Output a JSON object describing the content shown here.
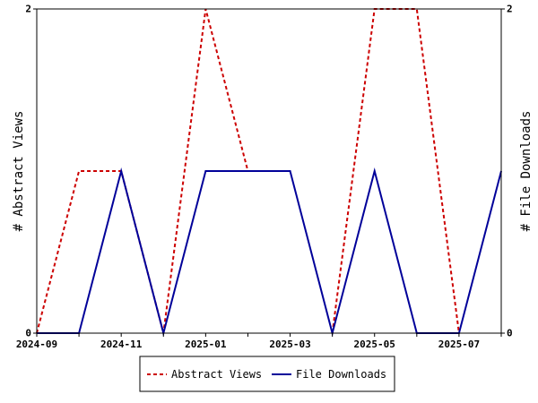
{
  "chart_data": {
    "type": "line",
    "x": [
      "2024-09",
      "2024-10",
      "2024-11",
      "2024-12",
      "2025-01",
      "2025-02",
      "2025-03",
      "2025-04",
      "2025-05",
      "2025-06",
      "2025-07",
      "2025-08"
    ],
    "x_tick_labels": [
      "2024-09",
      "2024-11",
      "2025-01",
      "2025-03",
      "2025-05",
      "2025-07"
    ],
    "series": [
      {
        "name": "Abstract Views",
        "values": [
          0,
          1,
          1,
          0,
          2,
          1,
          null,
          0,
          2,
          2,
          0,
          null
        ],
        "color": "#cc0000",
        "style": "dashed",
        "axis": "left"
      },
      {
        "name": "File Downloads",
        "values": [
          0,
          0,
          1,
          0,
          1,
          1,
          1,
          0,
          1,
          0,
          0,
          1
        ],
        "color": "#000099",
        "style": "solid",
        "axis": "right"
      }
    ],
    "ylabel_left": "# Abstract Views",
    "ylabel_right": "# File Downloads",
    "ylim_left": [
      0,
      2
    ],
    "ylim_right": [
      0,
      2
    ],
    "y_ticks_left": [
      "0",
      "2"
    ],
    "y_ticks_right": [
      "0",
      "2"
    ],
    "grid": false,
    "legend_position": "bottom-center"
  }
}
